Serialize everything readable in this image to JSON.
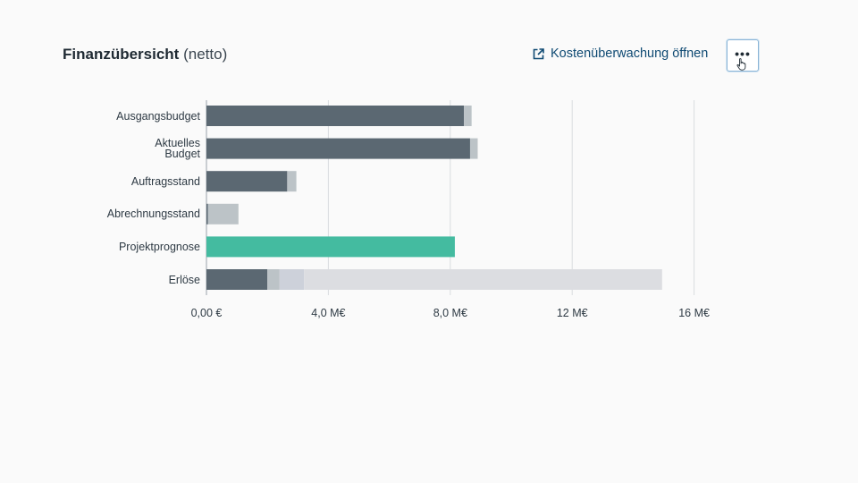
{
  "header": {
    "title": "Finanzübersicht",
    "title_suffix": "(netto)"
  },
  "actions": {
    "open_link_label": "Kostenüberwachung öffnen",
    "open_link_icon": "external-link-icon",
    "more_icon": "more-horizontal-icon",
    "more_label": "•••"
  },
  "colors": {
    "primary_bar": "#5b6872",
    "secondary_bar": "#bcc3c7",
    "forecast_bar": "#44bba0",
    "light_bar": "#dcdde1",
    "light_bar_alt": "#cdd1da",
    "link": "#0f4a73"
  },
  "chart_data": {
    "type": "bar",
    "orientation": "horizontal",
    "stacked": true,
    "categories": [
      "Ausgangsbudget",
      "Aktuelles Budget",
      "Auftragsstand",
      "Abrechnungsstand",
      "Projektprognose",
      "Erlöse"
    ],
    "category_lines": [
      [
        "Ausgangsbudget"
      ],
      [
        "Aktuelles",
        "Budget"
      ],
      [
        "Auftragsstand"
      ],
      [
        "Abrechnungsstand"
      ],
      [
        "Projektprognose"
      ],
      [
        "Erlöse"
      ]
    ],
    "segments": [
      [
        {
          "value": 8.45,
          "color": "primary_bar"
        },
        {
          "value": 0.25,
          "color": "secondary_bar"
        }
      ],
      [
        {
          "value": 8.65,
          "color": "primary_bar"
        },
        {
          "value": 0.25,
          "color": "secondary_bar"
        }
      ],
      [
        {
          "value": 2.65,
          "color": "primary_bar"
        },
        {
          "value": 0.3,
          "color": "secondary_bar"
        }
      ],
      [
        {
          "value": 0.05,
          "color": "primary_bar"
        },
        {
          "value": 1.0,
          "color": "secondary_bar"
        }
      ],
      [
        {
          "value": 8.15,
          "color": "forecast_bar"
        }
      ],
      [
        {
          "value": 2.0,
          "color": "primary_bar"
        },
        {
          "value": 0.4,
          "color": "secondary_bar"
        },
        {
          "value": 0.8,
          "color": "light_bar_alt"
        },
        {
          "value": 11.75,
          "color": "light_bar"
        }
      ]
    ],
    "x_ticks": [
      0,
      4,
      8,
      12,
      16
    ],
    "x_tick_labels": [
      "0,00 €",
      "4,0 M€",
      "8,0 M€",
      "12 M€",
      "16 M€"
    ],
    "xlim": [
      0,
      16
    ],
    "grid": true,
    "unit": "M€"
  }
}
